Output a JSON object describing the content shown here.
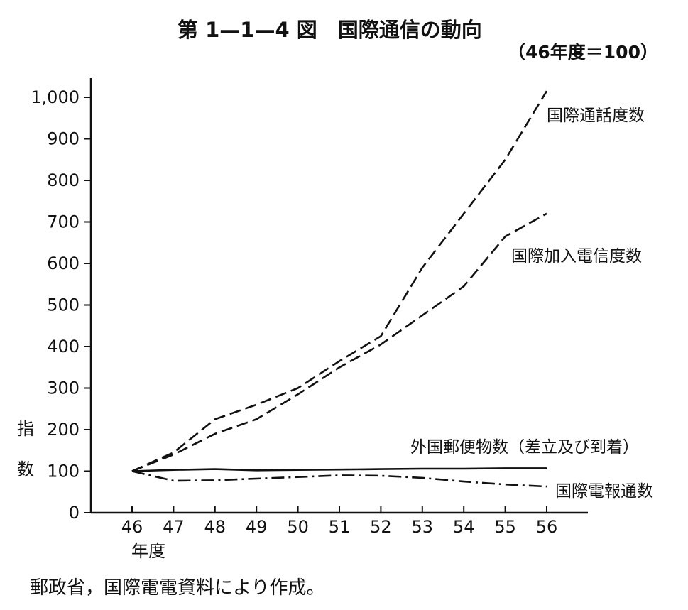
{
  "chart_data": {
    "type": "line",
    "title": "第 1—1—4 図　国際通信の動向",
    "subtitle": "（46年度＝100）",
    "xlabel": "年度",
    "ylabel": "指数",
    "ylim": [
      0,
      1000
    ],
    "yticks": [
      0,
      100,
      200,
      300,
      400,
      500,
      600,
      700,
      800,
      900,
      1000
    ],
    "ytick_labels": [
      "0",
      "100",
      "200",
      "300",
      "400",
      "500",
      "600",
      "700",
      "800",
      "900",
      "1,000"
    ],
    "categories": [
      "46",
      "47",
      "48",
      "49",
      "50",
      "51",
      "52",
      "53",
      "54",
      "55",
      "56"
    ],
    "series": [
      {
        "name": "国際通話度数",
        "values": [
          100,
          145,
          225,
          260,
          300,
          365,
          425,
          590,
          720,
          850,
          1015
        ],
        "color": "#111111",
        "dash": "dash"
      },
      {
        "name": "国際加入電信度数",
        "values": [
          100,
          140,
          190,
          225,
          285,
          350,
          405,
          475,
          545,
          665,
          720
        ],
        "color": "#111111",
        "dash": "dash"
      },
      {
        "name": "外国郵便物数（差立及び到着）",
        "values": [
          100,
          103,
          105,
          102,
          103,
          104,
          105,
          106,
          106,
          107,
          107
        ],
        "color": "#111111",
        "dash": "solid"
      },
      {
        "name": "国際電報通数",
        "values": [
          100,
          77,
          78,
          82,
          86,
          90,
          89,
          84,
          75,
          68,
          63
        ],
        "color": "#111111",
        "dash": "dashdot"
      }
    ],
    "grid": false,
    "source": "郵政省，国際電電資料により作成。"
  }
}
